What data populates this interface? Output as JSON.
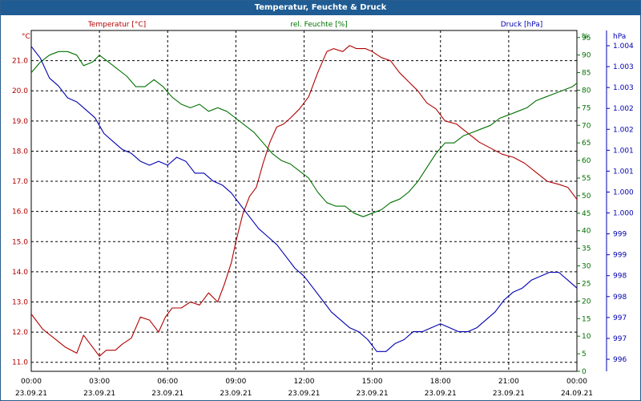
{
  "window": {
    "title": "Temperatur, Feuchte & Druck"
  },
  "colors": {
    "temperature": "#b00000",
    "humidity": "#007000",
    "pressure": "#0000b0",
    "grid": "#000000"
  },
  "chart_data": {
    "type": "line",
    "title": "Temperatur, Feuchte & Druck",
    "grid": true,
    "x": {
      "tick_labels": [
        [
          "00:00",
          "23.09.21"
        ],
        [
          "03:00",
          "23.09.21"
        ],
        [
          "06:00",
          "23.09.21"
        ],
        [
          "09:00",
          "23.09.21"
        ],
        [
          "12:00",
          "23.09.21"
        ],
        [
          "15:00",
          "23.09.21"
        ],
        [
          "18:00",
          "23.09.21"
        ],
        [
          "21:00",
          "23.09.21"
        ],
        [
          "00:00",
          "24.09.21"
        ]
      ],
      "range_hours": [
        0,
        24
      ]
    },
    "axes": {
      "temperature": {
        "label": "Temperatur [°C]",
        "unit": "°C",
        "range": [
          10.7,
          22.0
        ],
        "ticks": [
          "21.0",
          "20.0",
          "19.0",
          "18.0",
          "17.0",
          "16.0",
          "15.0",
          "14.0",
          "13.0",
          "12.0",
          "11.0"
        ],
        "tick_values": [
          21,
          20,
          19,
          18,
          17,
          16,
          15,
          14,
          13,
          12,
          11
        ]
      },
      "humidity": {
        "label": "rel. Feuchte [%]",
        "unit": "%",
        "range": [
          0,
          97
        ],
        "ticks": [
          "95",
          "90",
          "85",
          "80",
          "75",
          "70",
          "65",
          "60",
          "55",
          "50",
          "45",
          "40",
          "35",
          "30",
          "25",
          "20",
          "15",
          "10",
          "5",
          "0"
        ],
        "tick_values": [
          95,
          90,
          85,
          80,
          75,
          70,
          65,
          60,
          55,
          50,
          45,
          40,
          35,
          30,
          25,
          20,
          15,
          10,
          5,
          0
        ]
      },
      "pressure": {
        "label": "Druck [hPa]",
        "unit": "hPa",
        "range": [
          995.8,
          1004.4
        ],
        "ticks": [
          "1.004",
          "1.003",
          "1.003",
          "1.002",
          "1.002",
          "1.001",
          "1.001",
          "1.000",
          "1.000",
          "999",
          "999",
          "998",
          "998",
          "997",
          "997",
          "996"
        ]
      }
    },
    "series": [
      {
        "name": "Temperatur [°C]",
        "axis": "temperature",
        "x": [
          0,
          0.5,
          1,
          1.5,
          2,
          2.3,
          2.7,
          3,
          3.3,
          3.7,
          4,
          4.4,
          4.8,
          5.2,
          5.6,
          5.9,
          6.2,
          6.6,
          7,
          7.4,
          7.8,
          8.2,
          8.5,
          8.8,
          9,
          9.3,
          9.6,
          9.9,
          10.2,
          10.5,
          10.8,
          11.1,
          11.4,
          11.8,
          12.2,
          12.6,
          13,
          13.3,
          13.7,
          14,
          14.3,
          14.7,
          15,
          15.4,
          15.8,
          16.2,
          16.6,
          17,
          17.4,
          17.8,
          18.2,
          18.7,
          19.2,
          19.7,
          20.2,
          20.7,
          21.2,
          21.7,
          22.2,
          22.7,
          23.2,
          23.6,
          24
        ],
        "y": [
          12.6,
          12.1,
          11.8,
          11.5,
          11.3,
          11.9,
          11.5,
          11.2,
          11.4,
          11.4,
          11.6,
          11.8,
          12.5,
          12.4,
          12.0,
          12.5,
          12.8,
          12.8,
          13.0,
          12.9,
          13.3,
          13.0,
          13.6,
          14.3,
          15.0,
          15.9,
          16.5,
          16.8,
          17.6,
          18.3,
          18.8,
          18.9,
          19.1,
          19.4,
          19.8,
          20.6,
          21.3,
          21.4,
          21.3,
          21.5,
          21.4,
          21.4,
          21.3,
          21.1,
          21.0,
          20.6,
          20.3,
          20.0,
          19.6,
          19.4,
          19.0,
          18.9,
          18.6,
          18.3,
          18.1,
          17.9,
          17.8,
          17.6,
          17.3,
          17.0,
          16.9,
          16.8,
          16.4
        ]
      },
      {
        "name": "rel. Feuchte [%]",
        "axis": "humidity",
        "x": [
          0,
          0.4,
          0.8,
          1.2,
          1.6,
          2,
          2.3,
          2.7,
          3,
          3.4,
          3.8,
          4.2,
          4.6,
          5,
          5.4,
          5.8,
          6.2,
          6.6,
          7,
          7.4,
          7.8,
          8.2,
          8.6,
          9,
          9.4,
          9.8,
          10.2,
          10.6,
          11,
          11.4,
          11.8,
          12.2,
          12.6,
          13,
          13.4,
          13.8,
          14.2,
          14.6,
          15,
          15.4,
          15.8,
          16.2,
          16.6,
          17,
          17.4,
          17.8,
          18.2,
          18.6,
          19,
          19.4,
          19.8,
          20.2,
          20.6,
          21,
          21.4,
          21.8,
          22.2,
          22.6,
          23,
          23.4,
          23.8,
          24
        ],
        "y": [
          85,
          88,
          90,
          91,
          91,
          90,
          87,
          88,
          90,
          88,
          86,
          84,
          81,
          81,
          83,
          81,
          78,
          76,
          75,
          76,
          74,
          75,
          74,
          72,
          70,
          68,
          65,
          62,
          60,
          59,
          57,
          55,
          51,
          48,
          47,
          47,
          45,
          44,
          45,
          46,
          48,
          49,
          51,
          54,
          58,
          62,
          65,
          65,
          67,
          68,
          69,
          70,
          72,
          73,
          74,
          75,
          77,
          78,
          79,
          80,
          81,
          82
        ]
      },
      {
        "name": "Druck [hPa]",
        "axis": "pressure",
        "x": [
          0,
          0.4,
          0.8,
          1.2,
          1.6,
          2,
          2.4,
          2.8,
          3.2,
          3.6,
          4,
          4.4,
          4.8,
          5.2,
          5.6,
          6,
          6.4,
          6.8,
          7.2,
          7.6,
          8,
          8.4,
          8.8,
          9.2,
          9.6,
          10,
          10.4,
          10.8,
          11.2,
          11.6,
          12,
          12.4,
          12.8,
          13.2,
          13.6,
          14,
          14.4,
          14.8,
          15.2,
          15.6,
          16,
          16.4,
          16.8,
          17.2,
          17.6,
          18,
          18.4,
          18.8,
          19.2,
          19.6,
          20,
          20.4,
          20.8,
          21.2,
          21.6,
          22,
          22.4,
          22.8,
          23.2,
          23.6,
          24
        ],
        "y": [
          1004.0,
          1003.7,
          1003.2,
          1003.0,
          1002.7,
          1002.6,
          1002.4,
          1002.2,
          1001.8,
          1001.6,
          1001.4,
          1001.3,
          1001.1,
          1001.0,
          1001.1,
          1001.0,
          1001.2,
          1001.1,
          1000.8,
          1000.8,
          1000.6,
          1000.5,
          1000.3,
          1000.0,
          999.7,
          999.4,
          999.2,
          999.0,
          998.7,
          998.4,
          998.2,
          997.9,
          997.6,
          997.3,
          997.1,
          996.9,
          996.8,
          996.6,
          996.3,
          996.3,
          996.5,
          996.6,
          996.8,
          996.8,
          996.9,
          997.0,
          996.9,
          996.8,
          996.8,
          996.9,
          997.1,
          997.3,
          997.6,
          997.8,
          997.9,
          998.1,
          998.2,
          998.3,
          998.3,
          998.1,
          997.9
        ]
      }
    ]
  }
}
